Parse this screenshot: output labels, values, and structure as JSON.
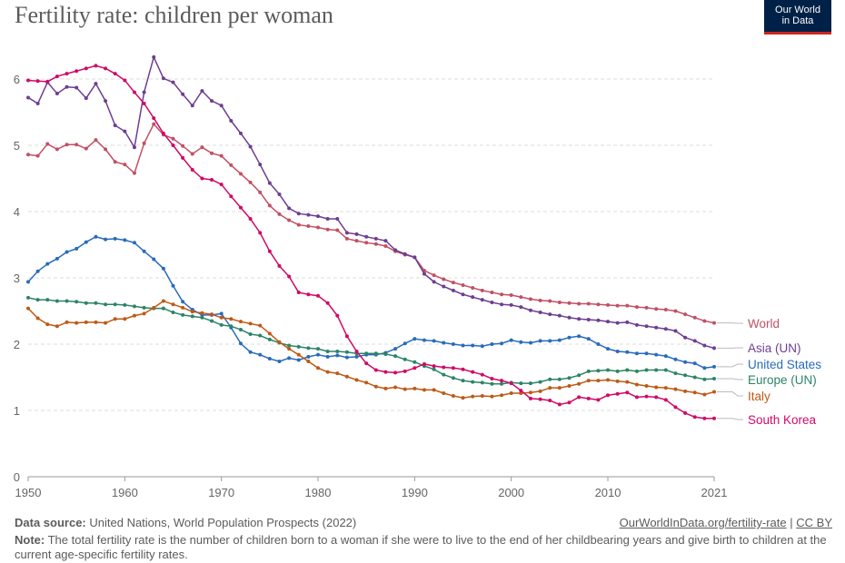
{
  "header": {
    "title": "Fertility rate: children per woman",
    "logo_line1": "Our World",
    "logo_line2": "in Data"
  },
  "footer": {
    "source_label": "Data source:",
    "source_text": "United Nations, World Population Prospects (2022)",
    "url": "OurWorldInData.org/fertility-rate",
    "separator": "|",
    "license": "CC BY",
    "note_label": "Note:",
    "note_text": "The total fertility rate is the number of children born to a woman if she were to live to the end of her childbearing years and give birth to children at the current age-specific fertility rates."
  },
  "colors": {
    "World": "#c15065",
    "Asia (UN)": "#6d3e91",
    "United States": "#286bbb",
    "Europe (UN)": "#2c8465",
    "Italy": "#be5915",
    "South Korea": "#cf0a66"
  },
  "chart_data": {
    "type": "line",
    "title": "Fertility rate: children per woman",
    "xlabel": "",
    "ylabel": "",
    "xlim": [
      1950,
      2021
    ],
    "ylim": [
      0,
      6.5
    ],
    "x_ticks": [
      1950,
      1960,
      1970,
      1980,
      1990,
      2000,
      2010,
      2021
    ],
    "y_ticks": [
      0,
      1,
      2,
      3,
      4,
      5,
      6
    ],
    "grid": "horizontal dashed",
    "legend": "right, labels at line ends",
    "series": [
      {
        "name": "World",
        "color": "#c15065",
        "x": [
          1950,
          1951,
          1952,
          1953,
          1954,
          1955,
          1956,
          1957,
          1958,
          1959,
          1960,
          1961,
          1962,
          1963,
          1964,
          1965,
          1966,
          1967,
          1968,
          1969,
          1970,
          1971,
          1972,
          1973,
          1974,
          1975,
          1976,
          1977,
          1978,
          1979,
          1980,
          1981,
          1982,
          1983,
          1984,
          1985,
          1986,
          1987,
          1988,
          1989,
          1990,
          1991,
          1992,
          1993,
          1994,
          1995,
          1996,
          1997,
          1998,
          1999,
          2000,
          2001,
          2002,
          2003,
          2004,
          2005,
          2006,
          2007,
          2008,
          2009,
          2010,
          2011,
          2012,
          2013,
          2014,
          2015,
          2016,
          2017,
          2018,
          2019,
          2020,
          2021
        ],
        "values": [
          4.86,
          4.84,
          5.02,
          4.94,
          5.01,
          5.01,
          4.95,
          5.08,
          4.94,
          4.75,
          4.71,
          4.58,
          5.03,
          5.32,
          5.16,
          5.1,
          4.99,
          4.87,
          4.97,
          4.88,
          4.84,
          4.7,
          4.57,
          4.44,
          4.29,
          4.09,
          3.96,
          3.87,
          3.8,
          3.78,
          3.76,
          3.73,
          3.72,
          3.59,
          3.56,
          3.53,
          3.51,
          3.48,
          3.4,
          3.35,
          3.31,
          3.11,
          3.04,
          2.98,
          2.93,
          2.89,
          2.85,
          2.81,
          2.78,
          2.75,
          2.74,
          2.71,
          2.68,
          2.66,
          2.65,
          2.63,
          2.62,
          2.61,
          2.61,
          2.6,
          2.59,
          2.58,
          2.58,
          2.56,
          2.55,
          2.53,
          2.52,
          2.5,
          2.45,
          2.4,
          2.35,
          2.32
        ]
      },
      {
        "name": "Asia (UN)",
        "color": "#6d3e91",
        "x": [
          1950,
          1951,
          1952,
          1953,
          1954,
          1955,
          1956,
          1957,
          1958,
          1959,
          1960,
          1961,
          1962,
          1963,
          1964,
          1965,
          1966,
          1967,
          1968,
          1969,
          1970,
          1971,
          1972,
          1973,
          1974,
          1975,
          1976,
          1977,
          1978,
          1979,
          1980,
          1981,
          1982,
          1983,
          1984,
          1985,
          1986,
          1987,
          1988,
          1989,
          1990,
          1991,
          1992,
          1993,
          1994,
          1995,
          1996,
          1997,
          1998,
          1999,
          2000,
          2001,
          2002,
          2003,
          2004,
          2005,
          2006,
          2007,
          2008,
          2009,
          2010,
          2011,
          2012,
          2013,
          2014,
          2015,
          2016,
          2017,
          2018,
          2019,
          2020,
          2021
        ],
        "values": [
          5.72,
          5.63,
          5.95,
          5.78,
          5.88,
          5.87,
          5.71,
          5.93,
          5.67,
          5.3,
          5.21,
          4.97,
          5.8,
          6.33,
          6.01,
          5.95,
          5.77,
          5.6,
          5.82,
          5.67,
          5.6,
          5.37,
          5.18,
          4.98,
          4.71,
          4.43,
          4.26,
          4.05,
          3.97,
          3.95,
          3.93,
          3.89,
          3.89,
          3.68,
          3.66,
          3.62,
          3.59,
          3.56,
          3.42,
          3.36,
          3.31,
          3.06,
          2.94,
          2.87,
          2.81,
          2.75,
          2.71,
          2.67,
          2.63,
          2.6,
          2.59,
          2.56,
          2.51,
          2.48,
          2.45,
          2.43,
          2.4,
          2.38,
          2.37,
          2.36,
          2.34,
          2.32,
          2.33,
          2.29,
          2.27,
          2.25,
          2.23,
          2.2,
          2.1,
          2.05,
          1.98,
          1.94
        ]
      },
      {
        "name": "United States",
        "color": "#286bbb",
        "x": [
          1950,
          1951,
          1952,
          1953,
          1954,
          1955,
          1956,
          1957,
          1958,
          1959,
          1960,
          1961,
          1962,
          1963,
          1964,
          1965,
          1966,
          1967,
          1968,
          1969,
          1970,
          1971,
          1972,
          1973,
          1974,
          1975,
          1976,
          1977,
          1978,
          1979,
          1980,
          1981,
          1982,
          1983,
          1984,
          1985,
          1986,
          1987,
          1988,
          1989,
          1990,
          1991,
          1992,
          1993,
          1994,
          1995,
          1996,
          1997,
          1998,
          1999,
          2000,
          2001,
          2002,
          2003,
          2004,
          2005,
          2006,
          2007,
          2008,
          2009,
          2010,
          2011,
          2012,
          2013,
          2014,
          2015,
          2016,
          2017,
          2018,
          2019,
          2020,
          2021
        ],
        "values": [
          2.94,
          3.1,
          3.21,
          3.29,
          3.39,
          3.44,
          3.54,
          3.62,
          3.58,
          3.59,
          3.57,
          3.53,
          3.4,
          3.28,
          3.14,
          2.88,
          2.64,
          2.52,
          2.44,
          2.44,
          2.46,
          2.25,
          2.01,
          1.88,
          1.84,
          1.78,
          1.74,
          1.79,
          1.76,
          1.81,
          1.84,
          1.81,
          1.83,
          1.8,
          1.81,
          1.84,
          1.84,
          1.87,
          1.93,
          2.01,
          2.08,
          2.06,
          2.05,
          2.02,
          2.0,
          1.98,
          1.98,
          1.97,
          2.0,
          2.01,
          2.06,
          2.03,
          2.02,
          2.05,
          2.05,
          2.06,
          2.1,
          2.12,
          2.08,
          2.0,
          1.93,
          1.89,
          1.88,
          1.86,
          1.86,
          1.84,
          1.82,
          1.77,
          1.73,
          1.71,
          1.64,
          1.66
        ]
      },
      {
        "name": "Europe (UN)",
        "color": "#2c8465",
        "x": [
          1950,
          1951,
          1952,
          1953,
          1954,
          1955,
          1956,
          1957,
          1958,
          1959,
          1960,
          1961,
          1962,
          1963,
          1964,
          1965,
          1966,
          1967,
          1968,
          1969,
          1970,
          1971,
          1972,
          1973,
          1974,
          1975,
          1976,
          1977,
          1978,
          1979,
          1980,
          1981,
          1982,
          1983,
          1984,
          1985,
          1986,
          1987,
          1988,
          1989,
          1990,
          1991,
          1992,
          1993,
          1994,
          1995,
          1996,
          1997,
          1998,
          1999,
          2000,
          2001,
          2002,
          2003,
          2004,
          2005,
          2006,
          2007,
          2008,
          2009,
          2010,
          2011,
          2012,
          2013,
          2014,
          2015,
          2016,
          2017,
          2018,
          2019,
          2020,
          2021
        ],
        "values": [
          2.7,
          2.67,
          2.67,
          2.65,
          2.65,
          2.64,
          2.62,
          2.62,
          2.6,
          2.6,
          2.59,
          2.57,
          2.55,
          2.54,
          2.54,
          2.48,
          2.44,
          2.42,
          2.4,
          2.35,
          2.29,
          2.27,
          2.22,
          2.15,
          2.13,
          2.07,
          2.02,
          1.98,
          1.96,
          1.94,
          1.93,
          1.89,
          1.89,
          1.88,
          1.86,
          1.86,
          1.86,
          1.85,
          1.82,
          1.77,
          1.73,
          1.67,
          1.62,
          1.54,
          1.49,
          1.45,
          1.43,
          1.42,
          1.4,
          1.4,
          1.42,
          1.41,
          1.41,
          1.43,
          1.47,
          1.47,
          1.49,
          1.53,
          1.59,
          1.6,
          1.61,
          1.59,
          1.61,
          1.59,
          1.61,
          1.61,
          1.61,
          1.56,
          1.53,
          1.5,
          1.47,
          1.48
        ]
      },
      {
        "name": "Italy",
        "color": "#be5915",
        "x": [
          1950,
          1951,
          1952,
          1953,
          1954,
          1955,
          1956,
          1957,
          1958,
          1959,
          1960,
          1961,
          1962,
          1963,
          1964,
          1965,
          1966,
          1967,
          1968,
          1969,
          1970,
          1971,
          1972,
          1973,
          1974,
          1975,
          1976,
          1977,
          1978,
          1979,
          1980,
          1981,
          1982,
          1983,
          1984,
          1985,
          1986,
          1987,
          1988,
          1989,
          1990,
          1991,
          1992,
          1993,
          1994,
          1995,
          1996,
          1997,
          1998,
          1999,
          2000,
          2001,
          2002,
          2003,
          2004,
          2005,
          2006,
          2007,
          2008,
          2009,
          2010,
          2011,
          2012,
          2013,
          2014,
          2015,
          2016,
          2017,
          2018,
          2019,
          2020,
          2021
        ],
        "values": [
          2.54,
          2.39,
          2.3,
          2.27,
          2.33,
          2.32,
          2.33,
          2.33,
          2.32,
          2.38,
          2.38,
          2.43,
          2.46,
          2.55,
          2.65,
          2.6,
          2.55,
          2.49,
          2.47,
          2.45,
          2.4,
          2.38,
          2.34,
          2.31,
          2.28,
          2.16,
          2.03,
          1.93,
          1.84,
          1.74,
          1.64,
          1.58,
          1.56,
          1.51,
          1.46,
          1.42,
          1.36,
          1.33,
          1.35,
          1.32,
          1.33,
          1.31,
          1.31,
          1.26,
          1.22,
          1.19,
          1.21,
          1.22,
          1.21,
          1.23,
          1.26,
          1.26,
          1.27,
          1.29,
          1.34,
          1.34,
          1.37,
          1.4,
          1.45,
          1.45,
          1.46,
          1.44,
          1.43,
          1.39,
          1.37,
          1.35,
          1.34,
          1.32,
          1.29,
          1.27,
          1.24,
          1.28
        ]
      },
      {
        "name": "South Korea",
        "color": "#cf0a66",
        "x": [
          1950,
          1951,
          1952,
          1953,
          1954,
          1955,
          1956,
          1957,
          1958,
          1959,
          1960,
          1961,
          1962,
          1963,
          1964,
          1965,
          1966,
          1967,
          1968,
          1969,
          1970,
          1971,
          1972,
          1973,
          1974,
          1975,
          1976,
          1977,
          1978,
          1979,
          1980,
          1981,
          1982,
          1983,
          1984,
          1985,
          1986,
          1987,
          1988,
          1989,
          1990,
          1991,
          1992,
          1993,
          1994,
          1995,
          1996,
          1997,
          1998,
          1999,
          2000,
          2001,
          2002,
          2003,
          2004,
          2005,
          2006,
          2007,
          2008,
          2009,
          2010,
          2011,
          2012,
          2013,
          2014,
          2015,
          2016,
          2017,
          2018,
          2019,
          2020,
          2021
        ],
        "values": [
          5.98,
          5.97,
          5.96,
          6.04,
          6.08,
          6.12,
          6.16,
          6.2,
          6.16,
          6.08,
          5.98,
          5.8,
          5.63,
          5.41,
          5.18,
          5.0,
          4.81,
          4.63,
          4.5,
          4.48,
          4.41,
          4.23,
          4.06,
          3.89,
          3.68,
          3.4,
          3.18,
          3.02,
          2.78,
          2.75,
          2.73,
          2.62,
          2.43,
          2.12,
          1.89,
          1.71,
          1.61,
          1.58,
          1.57,
          1.59,
          1.64,
          1.7,
          1.67,
          1.65,
          1.64,
          1.62,
          1.58,
          1.54,
          1.48,
          1.45,
          1.41,
          1.3,
          1.18,
          1.17,
          1.15,
          1.09,
          1.12,
          1.2,
          1.18,
          1.16,
          1.23,
          1.25,
          1.27,
          1.2,
          1.21,
          1.2,
          1.16,
          1.05,
          0.96,
          0.9,
          0.88,
          0.88
        ]
      }
    ]
  }
}
